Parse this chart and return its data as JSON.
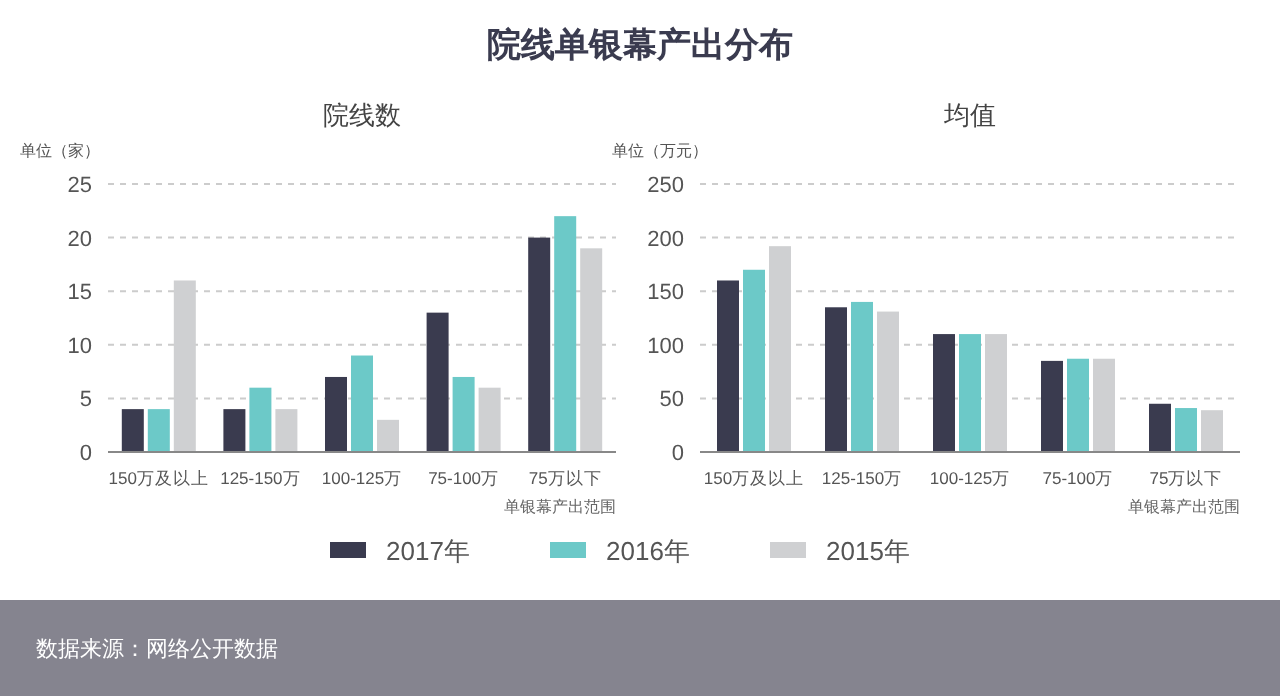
{
  "chart_data": [
    {
      "type": "other",
      "title": "院线单银幕产出分布",
      "annotations": [
        "数据来源：网络公开数据"
      ]
    },
    {
      "type": "bar",
      "title": "院线数",
      "ylabel": "单位（家）",
      "xlabel": "单银幕产出范围",
      "categories": [
        "150万及以上",
        "125-150万",
        "100-125万",
        "75-100万",
        "75万以下"
      ],
      "series": [
        {
          "name": "2017年",
          "color": "#3a3b4f",
          "values": [
            4,
            4,
            7,
            13,
            20
          ]
        },
        {
          "name": "2016年",
          "color": "#6cc9c8",
          "values": [
            4,
            6,
            9,
            7,
            22
          ]
        },
        {
          "name": "2015年",
          "color": "#cfd0d2",
          "values": [
            16,
            4,
            3,
            6,
            19
          ]
        }
      ],
      "ylim": [
        0,
        25
      ],
      "yticks": [
        0,
        5,
        10,
        15,
        20,
        25
      ],
      "grid": "y",
      "legend": "bottom"
    },
    {
      "type": "bar",
      "title": "均值",
      "ylabel": "单位（万元）",
      "xlabel": "单银幕产出范围",
      "categories": [
        "150万及以上",
        "125-150万",
        "100-125万",
        "75-100万",
        "75万以下"
      ],
      "series": [
        {
          "color": "#3a3b4f",
          "values": [
            160,
            135,
            110,
            85,
            45
          ]
        },
        {
          "color": "#6cc9c8",
          "values": [
            170,
            140,
            110,
            87,
            41
          ]
        },
        {
          "color": "#cfd0d2",
          "values": [
            192,
            131,
            110,
            87,
            39
          ]
        }
      ],
      "ylim": [
        0,
        250
      ],
      "yticks": [
        0,
        50,
        100,
        150,
        200,
        250
      ],
      "grid": "y"
    }
  ]
}
